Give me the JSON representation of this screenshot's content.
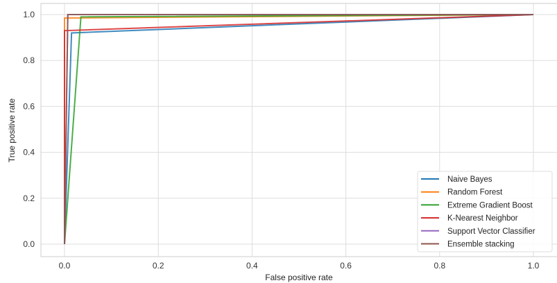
{
  "chart_data": {
    "type": "line",
    "title": "",
    "xlabel": "False positive rate",
    "ylabel": "True positive rate",
    "xlim": [
      -0.05,
      1.05
    ],
    "ylim": [
      -0.05,
      1.05
    ],
    "xticks": [
      "0.0",
      "0.2",
      "0.4",
      "0.6",
      "0.8",
      "1.0"
    ],
    "yticks": [
      "0.0",
      "0.2",
      "0.4",
      "0.6",
      "0.8",
      "1.0"
    ],
    "grid": true,
    "legend_position": "bottom-right",
    "series": [
      {
        "name": "Naive Bayes",
        "color": "#1f77b4",
        "x": [
          0,
          0.015,
          1
        ],
        "y": [
          0,
          0.92,
          1
        ]
      },
      {
        "name": "Random Forest",
        "color": "#ff7f0e",
        "x": [
          0,
          0.0,
          1
        ],
        "y": [
          0,
          0.985,
          1
        ]
      },
      {
        "name": "Extreme Gradient Boost",
        "color": "#2ca02c",
        "x": [
          0,
          0.035,
          1
        ],
        "y": [
          0,
          0.99,
          1
        ]
      },
      {
        "name": "K-Nearest Neighbor",
        "color": "#d62728",
        "x": [
          0,
          0.0,
          1
        ],
        "y": [
          0,
          0.93,
          1
        ]
      },
      {
        "name": "Support Vector Classifier",
        "color": "#9467bd",
        "x": [
          0,
          0.007,
          1
        ],
        "y": [
          0,
          1.0,
          1
        ]
      },
      {
        "name": "Ensemble stacking",
        "color": "#8c564b",
        "x": [
          0,
          0.007,
          1
        ],
        "y": [
          0,
          1.0,
          1
        ]
      }
    ]
  }
}
